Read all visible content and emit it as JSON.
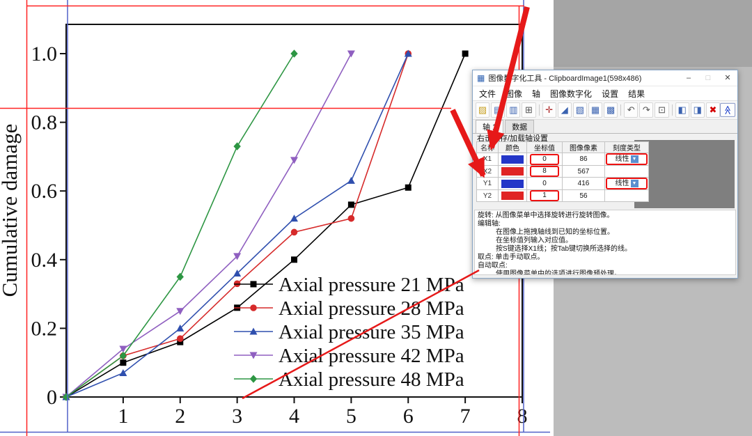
{
  "colors": {
    "annotation_red": "#e61919",
    "digitizer_line_red": "#ff2222",
    "digitizer_line_blue": "#5060c8",
    "image_pane_gray": "#7f7f7f"
  },
  "chart_data": {
    "type": "line",
    "title": "",
    "xlabel": "",
    "ylabel": "Cumulative damage",
    "xlim": [
      0,
      8
    ],
    "ylim": [
      0,
      1.09
    ],
    "xticks": [
      "1",
      "2",
      "3",
      "4",
      "5",
      "6",
      "7",
      "8"
    ],
    "yticks": [
      "0",
      "0.2",
      "0.4",
      "0.6",
      "0.8",
      "1.0"
    ],
    "grid": false,
    "legend_position": "lower right",
    "series": [
      {
        "name": "Axial pressure 21 MPa",
        "color": "#000000",
        "marker": "square",
        "x": [
          0,
          1,
          2,
          3,
          4,
          5,
          6,
          7
        ],
        "y": [
          0,
          0.1,
          0.16,
          0.26,
          0.4,
          0.56,
          0.61,
          1.0
        ]
      },
      {
        "name": "Axial pressure 28 MPa",
        "color": "#d62a2a",
        "marker": "circle",
        "x": [
          0,
          1,
          2,
          3,
          4,
          5,
          6
        ],
        "y": [
          0,
          0.12,
          0.17,
          0.33,
          0.48,
          0.52,
          1.0
        ]
      },
      {
        "name": "Axial pressure 35 MPa",
        "color": "#2f4fae",
        "marker": "triangle-up",
        "x": [
          0,
          1,
          2,
          3,
          4,
          5,
          6
        ],
        "y": [
          0,
          0.07,
          0.2,
          0.36,
          0.52,
          0.63,
          1.0
        ]
      },
      {
        "name": "Axial pressure 42 MPa",
        "color": "#8f5fc0",
        "marker": "triangle-down",
        "x": [
          0,
          1,
          2,
          3,
          4,
          5
        ],
        "y": [
          0,
          0.14,
          0.25,
          0.41,
          0.69,
          1.0
        ]
      },
      {
        "name": "Axial pressure 48 MPa",
        "color": "#2d9643",
        "marker": "diamond",
        "x": [
          0,
          1,
          2,
          3,
          4
        ],
        "y": [
          0,
          0.12,
          0.35,
          0.73,
          1.0
        ]
      }
    ]
  },
  "window": {
    "title": "图像数字化工具 - ClipboardImage1(598x486)",
    "controls": {
      "minimize": "–",
      "maximize": "□",
      "close": "✕"
    },
    "menus": [
      "文件",
      "图像",
      "轴",
      "图像数字化",
      "设置",
      "结果"
    ],
    "toolbar_icons": [
      {
        "name": "open",
        "glyph": "▨",
        "color": "#c8a227"
      },
      {
        "name": "save",
        "glyph": "▤",
        "color": "#3a62b0"
      },
      {
        "name": "export",
        "glyph": "▥",
        "color": "#3a62b0"
      },
      {
        "name": "crop",
        "glyph": "⊞",
        "color": "#555555"
      },
      {
        "sep": true
      },
      {
        "name": "edit-axes",
        "glyph": "✛",
        "color": "#b03030"
      },
      {
        "name": "pick-point",
        "glyph": "◢",
        "color": "#3a62b0"
      },
      {
        "name": "trace-curve",
        "glyph": "▧",
        "color": "#3a62b0"
      },
      {
        "name": "grid-points",
        "glyph": "▦",
        "color": "#3a62b0"
      },
      {
        "name": "area-trace",
        "glyph": "▩",
        "color": "#3a62b0"
      },
      {
        "sep": true
      },
      {
        "name": "undo",
        "glyph": "↶",
        "color": "#555555"
      },
      {
        "name": "redo",
        "glyph": "↷",
        "color": "#555555"
      },
      {
        "name": "zoom",
        "glyph": "⊡",
        "color": "#555555"
      },
      {
        "sep": true
      },
      {
        "name": "prev-point",
        "glyph": "◧",
        "color": "#3a62b0"
      },
      {
        "name": "next-point",
        "glyph": "◨",
        "color": "#3a62b0"
      },
      {
        "name": "delete-points",
        "glyph": "✖",
        "color": "#d40000"
      },
      {
        "name": "collapse-toolbar",
        "glyph": "≪",
        "color": "#2244cc",
        "rot": 90,
        "right": true
      }
    ],
    "tabs": [
      {
        "label": "轴 1",
        "active": true
      },
      {
        "label": "数据",
        "active": false
      }
    ],
    "axes_hint": "右击保存/加载轴设置",
    "table": {
      "headers": [
        "名称",
        "颜色",
        "坐标值",
        "图像像素",
        "刻度类型"
      ],
      "rows": [
        {
          "name": "X1",
          "color": "#2436c8",
          "value": "0",
          "pixel": "86",
          "scale": "线性",
          "value_boxed": true,
          "scale_boxed": true
        },
        {
          "name": "X2",
          "color": "#e02424",
          "value": "8",
          "pixel": "567",
          "scale": "",
          "value_boxed": true,
          "scale_boxed": false
        },
        {
          "name": "Y1",
          "color": "#2436c8",
          "value": "0",
          "pixel": "416",
          "scale": "线性",
          "value_boxed": false,
          "scale_boxed": true
        },
        {
          "name": "Y2",
          "color": "#e02424",
          "value": "1",
          "pixel": "56",
          "scale": "",
          "value_boxed": true,
          "scale_boxed": false
        }
      ]
    },
    "help_lines": [
      {
        "text": "旋转: 从图像菜单中选择旋转进行旋转图像。",
        "indent": 0
      },
      {
        "text": "编辑轴:",
        "indent": 0
      },
      {
        "text": "在图像上拖拽轴线到已知的坐标位置。",
        "indent": 1
      },
      {
        "text": "在坐标值列输入对应值。",
        "indent": 1
      },
      {
        "text": "按S键选择X1线；按Tab键切换所选择的线。",
        "indent": 1
      },
      {
        "text": "取点: 单击手动取点。",
        "indent": 0
      },
      {
        "text": "自动取点:",
        "indent": 0
      },
      {
        "text": "使用图像菜单中的选项进行图像预处理。",
        "indent": 1
      },
      {
        "text": "单击蓝点自动追踪曲线，网格自动取点，区域自动追踪曲线或有限边界区域自动追踪曲线。",
        "indent": 1
      }
    ]
  },
  "annotations": {
    "digitizer_lines": [
      "X1-axis-line",
      "X2-axis-line",
      "Y1-axis-line",
      "Y2-axis-line"
    ],
    "arrows": [
      "arrow-to-x-rows",
      "arrow-to-y2-row",
      "line-to-x-tick-3"
    ]
  }
}
